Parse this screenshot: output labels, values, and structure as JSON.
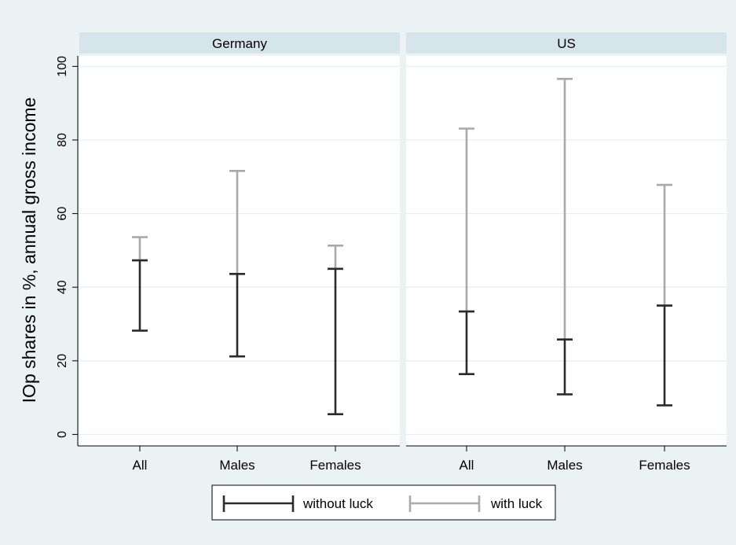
{
  "chart_data": {
    "type": "range",
    "ylabel": "IOp shares in %, annual gross income",
    "ylim": [
      0,
      100
    ],
    "yticks": [
      0,
      20,
      40,
      60,
      80,
      100
    ],
    "categories": [
      "All",
      "Males",
      "Females"
    ],
    "grid": true,
    "legend_position": "bottom",
    "panels": [
      {
        "title": "Germany",
        "series": [
          {
            "name": "without luck",
            "color": "#2b2b2b",
            "ranges": [
              [
                28.2,
                47.3
              ],
              [
                21.2,
                43.6
              ],
              [
                5.5,
                45.0
              ]
            ]
          },
          {
            "name": "with luck",
            "color": "#a9a9a9",
            "ranges": [
              [
                47.3,
                53.6
              ],
              [
                43.6,
                71.6
              ],
              [
                45.0,
                51.3
              ]
            ]
          }
        ]
      },
      {
        "title": "US",
        "series": [
          {
            "name": "without luck",
            "color": "#2b2b2b",
            "ranges": [
              [
                16.4,
                33.4
              ],
              [
                10.9,
                25.8
              ],
              [
                7.9,
                35.0
              ]
            ]
          },
          {
            "name": "with luck",
            "color": "#a9a9a9",
            "ranges": [
              [
                33.4,
                83.1
              ],
              [
                25.8,
                96.6
              ],
              [
                35.0,
                67.8
              ]
            ]
          }
        ]
      }
    ]
  },
  "legend": {
    "items": [
      {
        "label": "without luck",
        "color": "#2b2b2b"
      },
      {
        "label": "with luck",
        "color": "#a9a9a9"
      }
    ]
  }
}
